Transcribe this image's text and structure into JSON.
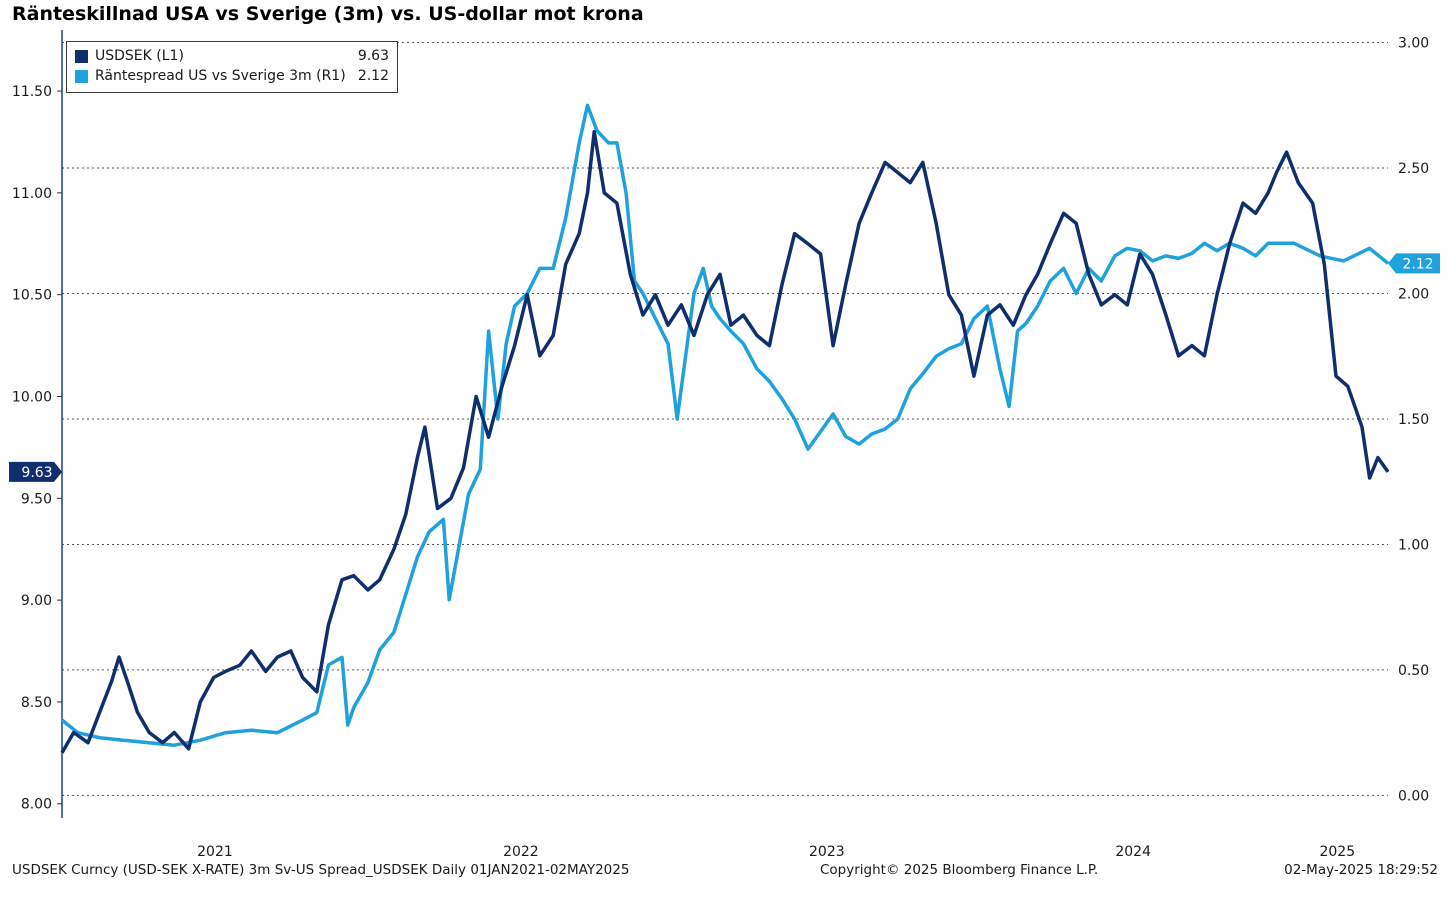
{
  "title": "Ränteskillnad USA vs Sverige (3m) vs. US-dollar mot krona",
  "footer": {
    "left": "USDSEK Curncy (USD-SEK X-RATE) 3m Sv-US Spread_USDSEK  Daily 01JAN2021-02MAY2025",
    "center": "Copyright© 2025 Bloomberg Finance L.P.",
    "right": "02-May-2025 18:29:52"
  },
  "colors": {
    "usdsek": "#0e2e6e",
    "spread": "#1ea1dc"
  },
  "chart_data": {
    "type": "line",
    "x_range": [
      "2021-01-01",
      "2025-05-02"
    ],
    "x_tick_labels": [
      "2021",
      "2022",
      "2023",
      "2024",
      "2025"
    ],
    "left_axis": {
      "ylim": [
        7.93,
        11.8
      ],
      "ticks": [
        "8.00",
        "8.50",
        "9.00",
        "9.50",
        "10.00",
        "10.50",
        "11.00",
        "11.50"
      ]
    },
    "right_axis": {
      "ylim": [
        -0.09,
        3.05
      ],
      "ticks": [
        "0.00",
        "0.50",
        "1.00",
        "1.50",
        "2.00",
        "2.50",
        "3.00"
      ]
    },
    "grid": "horizontal dotted, on right-axis ticks",
    "legend_position": "top-left",
    "series": [
      {
        "name": "USDSEK (L1)",
        "axis": "left",
        "last_value": "9.63",
        "points": [
          [
            "2021-01-01",
            8.25
          ],
          [
            "2021-01-15",
            8.35
          ],
          [
            "2021-02-01",
            8.3
          ],
          [
            "2021-02-15",
            8.45
          ],
          [
            "2021-03-01",
            8.6
          ],
          [
            "2021-03-10",
            8.72
          ],
          [
            "2021-03-20",
            8.6
          ],
          [
            "2021-04-01",
            8.45
          ],
          [
            "2021-04-15",
            8.35
          ],
          [
            "2021-05-01",
            8.3
          ],
          [
            "2021-05-15",
            8.35
          ],
          [
            "2021-06-01",
            8.27
          ],
          [
            "2021-06-15",
            8.5
          ],
          [
            "2021-07-01",
            8.62
          ],
          [
            "2021-07-15",
            8.65
          ],
          [
            "2021-08-01",
            8.68
          ],
          [
            "2021-08-15",
            8.75
          ],
          [
            "2021-09-01",
            8.65
          ],
          [
            "2021-09-15",
            8.72
          ],
          [
            "2021-10-01",
            8.75
          ],
          [
            "2021-10-15",
            8.62
          ],
          [
            "2021-11-01",
            8.55
          ],
          [
            "2021-11-15",
            8.88
          ],
          [
            "2021-12-01",
            9.1
          ],
          [
            "2021-12-15",
            9.12
          ],
          [
            "2022-01-01",
            9.05
          ],
          [
            "2022-01-15",
            9.1
          ],
          [
            "2022-02-01",
            9.25
          ],
          [
            "2022-02-15",
            9.42
          ],
          [
            "2022-03-01",
            9.7
          ],
          [
            "2022-03-10",
            9.85
          ],
          [
            "2022-03-25",
            9.45
          ],
          [
            "2022-04-10",
            9.5
          ],
          [
            "2022-04-25",
            9.65
          ],
          [
            "2022-05-10",
            10.0
          ],
          [
            "2022-05-25",
            9.8
          ],
          [
            "2022-06-10",
            10.05
          ],
          [
            "2022-06-25",
            10.25
          ],
          [
            "2022-07-10",
            10.5
          ],
          [
            "2022-07-25",
            10.2
          ],
          [
            "2022-08-10",
            10.3
          ],
          [
            "2022-08-25",
            10.65
          ],
          [
            "2022-09-10",
            10.8
          ],
          [
            "2022-09-20",
            11.0
          ],
          [
            "2022-09-28",
            11.3
          ],
          [
            "2022-10-10",
            11.0
          ],
          [
            "2022-10-25",
            10.95
          ],
          [
            "2022-11-10",
            10.6
          ],
          [
            "2022-11-25",
            10.4
          ],
          [
            "2022-12-10",
            10.5
          ],
          [
            "2022-12-25",
            10.35
          ],
          [
            "2023-01-10",
            10.45
          ],
          [
            "2023-01-25",
            10.3
          ],
          [
            "2023-02-10",
            10.5
          ],
          [
            "2023-02-25",
            10.6
          ],
          [
            "2023-03-10",
            10.35
          ],
          [
            "2023-03-25",
            10.4
          ],
          [
            "2023-04-10",
            10.3
          ],
          [
            "2023-04-25",
            10.25
          ],
          [
            "2023-05-10",
            10.55
          ],
          [
            "2023-05-25",
            10.8
          ],
          [
            "2023-06-10",
            10.75
          ],
          [
            "2023-06-25",
            10.7
          ],
          [
            "2023-07-10",
            10.25
          ],
          [
            "2023-07-25",
            10.55
          ],
          [
            "2023-08-10",
            10.85
          ],
          [
            "2023-08-25",
            11.0
          ],
          [
            "2023-09-10",
            11.15
          ],
          [
            "2023-09-25",
            11.1
          ],
          [
            "2023-10-10",
            11.05
          ],
          [
            "2023-10-25",
            11.15
          ],
          [
            "2023-11-10",
            10.85
          ],
          [
            "2023-11-25",
            10.5
          ],
          [
            "2023-12-10",
            10.4
          ],
          [
            "2023-12-25",
            10.1
          ],
          [
            "2024-01-10",
            10.4
          ],
          [
            "2024-01-25",
            10.45
          ],
          [
            "2024-02-10",
            10.35
          ],
          [
            "2024-02-25",
            10.5
          ],
          [
            "2024-03-10",
            10.6
          ],
          [
            "2024-03-25",
            10.75
          ],
          [
            "2024-04-10",
            10.9
          ],
          [
            "2024-04-25",
            10.85
          ],
          [
            "2024-05-10",
            10.6
          ],
          [
            "2024-05-25",
            10.45
          ],
          [
            "2024-06-10",
            10.5
          ],
          [
            "2024-06-25",
            10.45
          ],
          [
            "2024-07-10",
            10.7
          ],
          [
            "2024-07-25",
            10.6
          ],
          [
            "2024-08-10",
            10.4
          ],
          [
            "2024-08-25",
            10.2
          ],
          [
            "2024-09-10",
            10.25
          ],
          [
            "2024-09-25",
            10.2
          ],
          [
            "2024-10-10",
            10.5
          ],
          [
            "2024-10-25",
            10.75
          ],
          [
            "2024-11-10",
            10.95
          ],
          [
            "2024-11-25",
            10.9
          ],
          [
            "2024-12-10",
            11.0
          ],
          [
            "2024-12-20",
            11.1
          ],
          [
            "2025-01-01",
            11.2
          ],
          [
            "2025-01-15",
            11.05
          ],
          [
            "2025-02-01",
            10.95
          ],
          [
            "2025-02-15",
            10.65
          ],
          [
            "2025-03-01",
            10.1
          ],
          [
            "2025-03-15",
            10.05
          ],
          [
            "2025-04-01",
            9.85
          ],
          [
            "2025-04-10",
            9.6
          ],
          [
            "2025-04-20",
            9.7
          ],
          [
            "2025-05-02",
            9.63
          ]
        ]
      },
      {
        "name": "Räntespread US vs Sverige 3m (R1)",
        "axis": "right",
        "last_value": "2.12",
        "points": [
          [
            "2021-01-01",
            0.3
          ],
          [
            "2021-01-20",
            0.25
          ],
          [
            "2021-02-15",
            0.23
          ],
          [
            "2021-03-15",
            0.22
          ],
          [
            "2021-04-15",
            0.21
          ],
          [
            "2021-05-15",
            0.2
          ],
          [
            "2021-06-15",
            0.22
          ],
          [
            "2021-07-15",
            0.25
          ],
          [
            "2021-08-15",
            0.26
          ],
          [
            "2021-09-15",
            0.25
          ],
          [
            "2021-10-15",
            0.3
          ],
          [
            "2021-11-01",
            0.33
          ],
          [
            "2021-11-15",
            0.52
          ],
          [
            "2021-12-01",
            0.55
          ],
          [
            "2021-12-08",
            0.28
          ],
          [
            "2021-12-15",
            0.35
          ],
          [
            "2022-01-01",
            0.45
          ],
          [
            "2022-01-15",
            0.58
          ],
          [
            "2022-02-01",
            0.65
          ],
          [
            "2022-02-15",
            0.8
          ],
          [
            "2022-03-01",
            0.95
          ],
          [
            "2022-03-15",
            1.05
          ],
          [
            "2022-04-01",
            1.1
          ],
          [
            "2022-04-08",
            0.78
          ],
          [
            "2022-04-20",
            1.0
          ],
          [
            "2022-05-01",
            1.2
          ],
          [
            "2022-05-15",
            1.3
          ],
          [
            "2022-05-25",
            1.85
          ],
          [
            "2022-06-05",
            1.5
          ],
          [
            "2022-06-15",
            1.8
          ],
          [
            "2022-06-25",
            1.95
          ],
          [
            "2022-07-10",
            2.0
          ],
          [
            "2022-07-25",
            2.1
          ],
          [
            "2022-08-10",
            2.1
          ],
          [
            "2022-08-25",
            2.3
          ],
          [
            "2022-09-10",
            2.6
          ],
          [
            "2022-09-20",
            2.75
          ],
          [
            "2022-10-01",
            2.65
          ],
          [
            "2022-10-15",
            2.6
          ],
          [
            "2022-10-25",
            2.6
          ],
          [
            "2022-11-05",
            2.4
          ],
          [
            "2022-11-15",
            2.05
          ],
          [
            "2022-11-25",
            2.0
          ],
          [
            "2022-12-10",
            1.9
          ],
          [
            "2022-12-25",
            1.8
          ],
          [
            "2023-01-05",
            1.5
          ],
          [
            "2023-01-15",
            1.75
          ],
          [
            "2023-01-25",
            2.0
          ],
          [
            "2023-02-05",
            2.1
          ],
          [
            "2023-02-15",
            1.95
          ],
          [
            "2023-02-25",
            1.9
          ],
          [
            "2023-03-10",
            1.85
          ],
          [
            "2023-03-25",
            1.8
          ],
          [
            "2023-04-10",
            1.7
          ],
          [
            "2023-04-25",
            1.65
          ],
          [
            "2023-05-10",
            1.58
          ],
          [
            "2023-05-25",
            1.5
          ],
          [
            "2023-06-10",
            1.38
          ],
          [
            "2023-06-25",
            1.45
          ],
          [
            "2023-07-10",
            1.52
          ],
          [
            "2023-07-25",
            1.43
          ],
          [
            "2023-08-10",
            1.4
          ],
          [
            "2023-08-25",
            1.44
          ],
          [
            "2023-09-10",
            1.46
          ],
          [
            "2023-09-25",
            1.5
          ],
          [
            "2023-10-10",
            1.62
          ],
          [
            "2023-10-25",
            1.68
          ],
          [
            "2023-11-10",
            1.75
          ],
          [
            "2023-11-25",
            1.78
          ],
          [
            "2023-12-10",
            1.8
          ],
          [
            "2023-12-25",
            1.9
          ],
          [
            "2024-01-10",
            1.95
          ],
          [
            "2024-01-25",
            1.7
          ],
          [
            "2024-02-05",
            1.55
          ],
          [
            "2024-02-15",
            1.85
          ],
          [
            "2024-02-25",
            1.88
          ],
          [
            "2024-03-10",
            1.95
          ],
          [
            "2024-03-25",
            2.05
          ],
          [
            "2024-04-10",
            2.1
          ],
          [
            "2024-04-25",
            2.0
          ],
          [
            "2024-05-10",
            2.1
          ],
          [
            "2024-05-25",
            2.05
          ],
          [
            "2024-06-10",
            2.15
          ],
          [
            "2024-06-25",
            2.18
          ],
          [
            "2024-07-10",
            2.17
          ],
          [
            "2024-07-25",
            2.13
          ],
          [
            "2024-08-10",
            2.15
          ],
          [
            "2024-08-25",
            2.14
          ],
          [
            "2024-09-10",
            2.16
          ],
          [
            "2024-09-25",
            2.2
          ],
          [
            "2024-10-10",
            2.17
          ],
          [
            "2024-10-25",
            2.2
          ],
          [
            "2024-11-10",
            2.18
          ],
          [
            "2024-11-25",
            2.15
          ],
          [
            "2024-12-10",
            2.2
          ],
          [
            "2025-01-10",
            2.2
          ],
          [
            "2025-02-10",
            2.15
          ],
          [
            "2025-03-10",
            2.13
          ],
          [
            "2025-04-10",
            2.18
          ],
          [
            "2025-05-02",
            2.12
          ]
        ]
      }
    ]
  }
}
